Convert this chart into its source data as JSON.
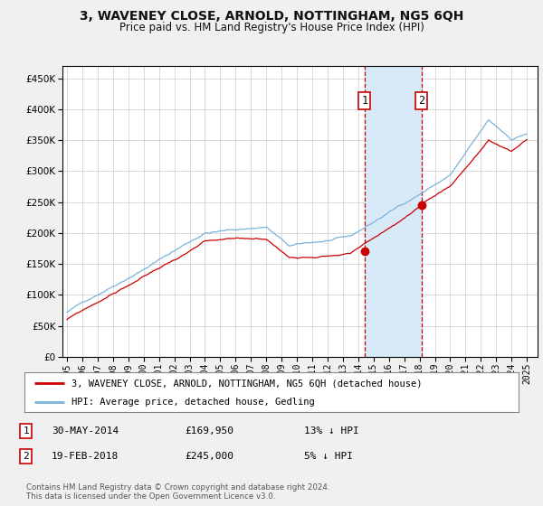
{
  "title": "3, WAVENEY CLOSE, ARNOLD, NOTTINGHAM, NG5 6QH",
  "subtitle": "Price paid vs. HM Land Registry's House Price Index (HPI)",
  "legend_line1": "3, WAVENEY CLOSE, ARNOLD, NOTTINGHAM, NG5 6QH (detached house)",
  "legend_line2": "HPI: Average price, detached house, Gedling",
  "annotation1_date": "30-MAY-2014",
  "annotation1_price": "£169,950",
  "annotation1_hpi": "13% ↓ HPI",
  "annotation2_date": "19-FEB-2018",
  "annotation2_price": "£245,000",
  "annotation2_hpi": "5% ↓ HPI",
  "sale1_year": 2014.41,
  "sale1_value": 169950,
  "sale2_year": 2018.12,
  "sale2_value": 245000,
  "hpi_color": "#7ab4d8",
  "price_color": "#cc0000",
  "bg_color": "#f0f0f0",
  "plot_bg": "#ffffff",
  "shade_color": "#d8eaf8",
  "grid_color": "#cccccc",
  "footer": "Contains HM Land Registry data © Crown copyright and database right 2024.\nThis data is licensed under the Open Government Licence v3.0.",
  "ylim": [
    0,
    470000
  ],
  "yticks": [
    0,
    50000,
    100000,
    150000,
    200000,
    250000,
    300000,
    350000,
    400000,
    450000
  ],
  "xlabel_years": [
    1995,
    1996,
    1997,
    1998,
    1999,
    2000,
    2001,
    2002,
    2003,
    2004,
    2005,
    2006,
    2007,
    2008,
    2009,
    2010,
    2011,
    2012,
    2013,
    2014,
    2015,
    2016,
    2017,
    2018,
    2019,
    2020,
    2021,
    2022,
    2023,
    2024,
    2025
  ]
}
